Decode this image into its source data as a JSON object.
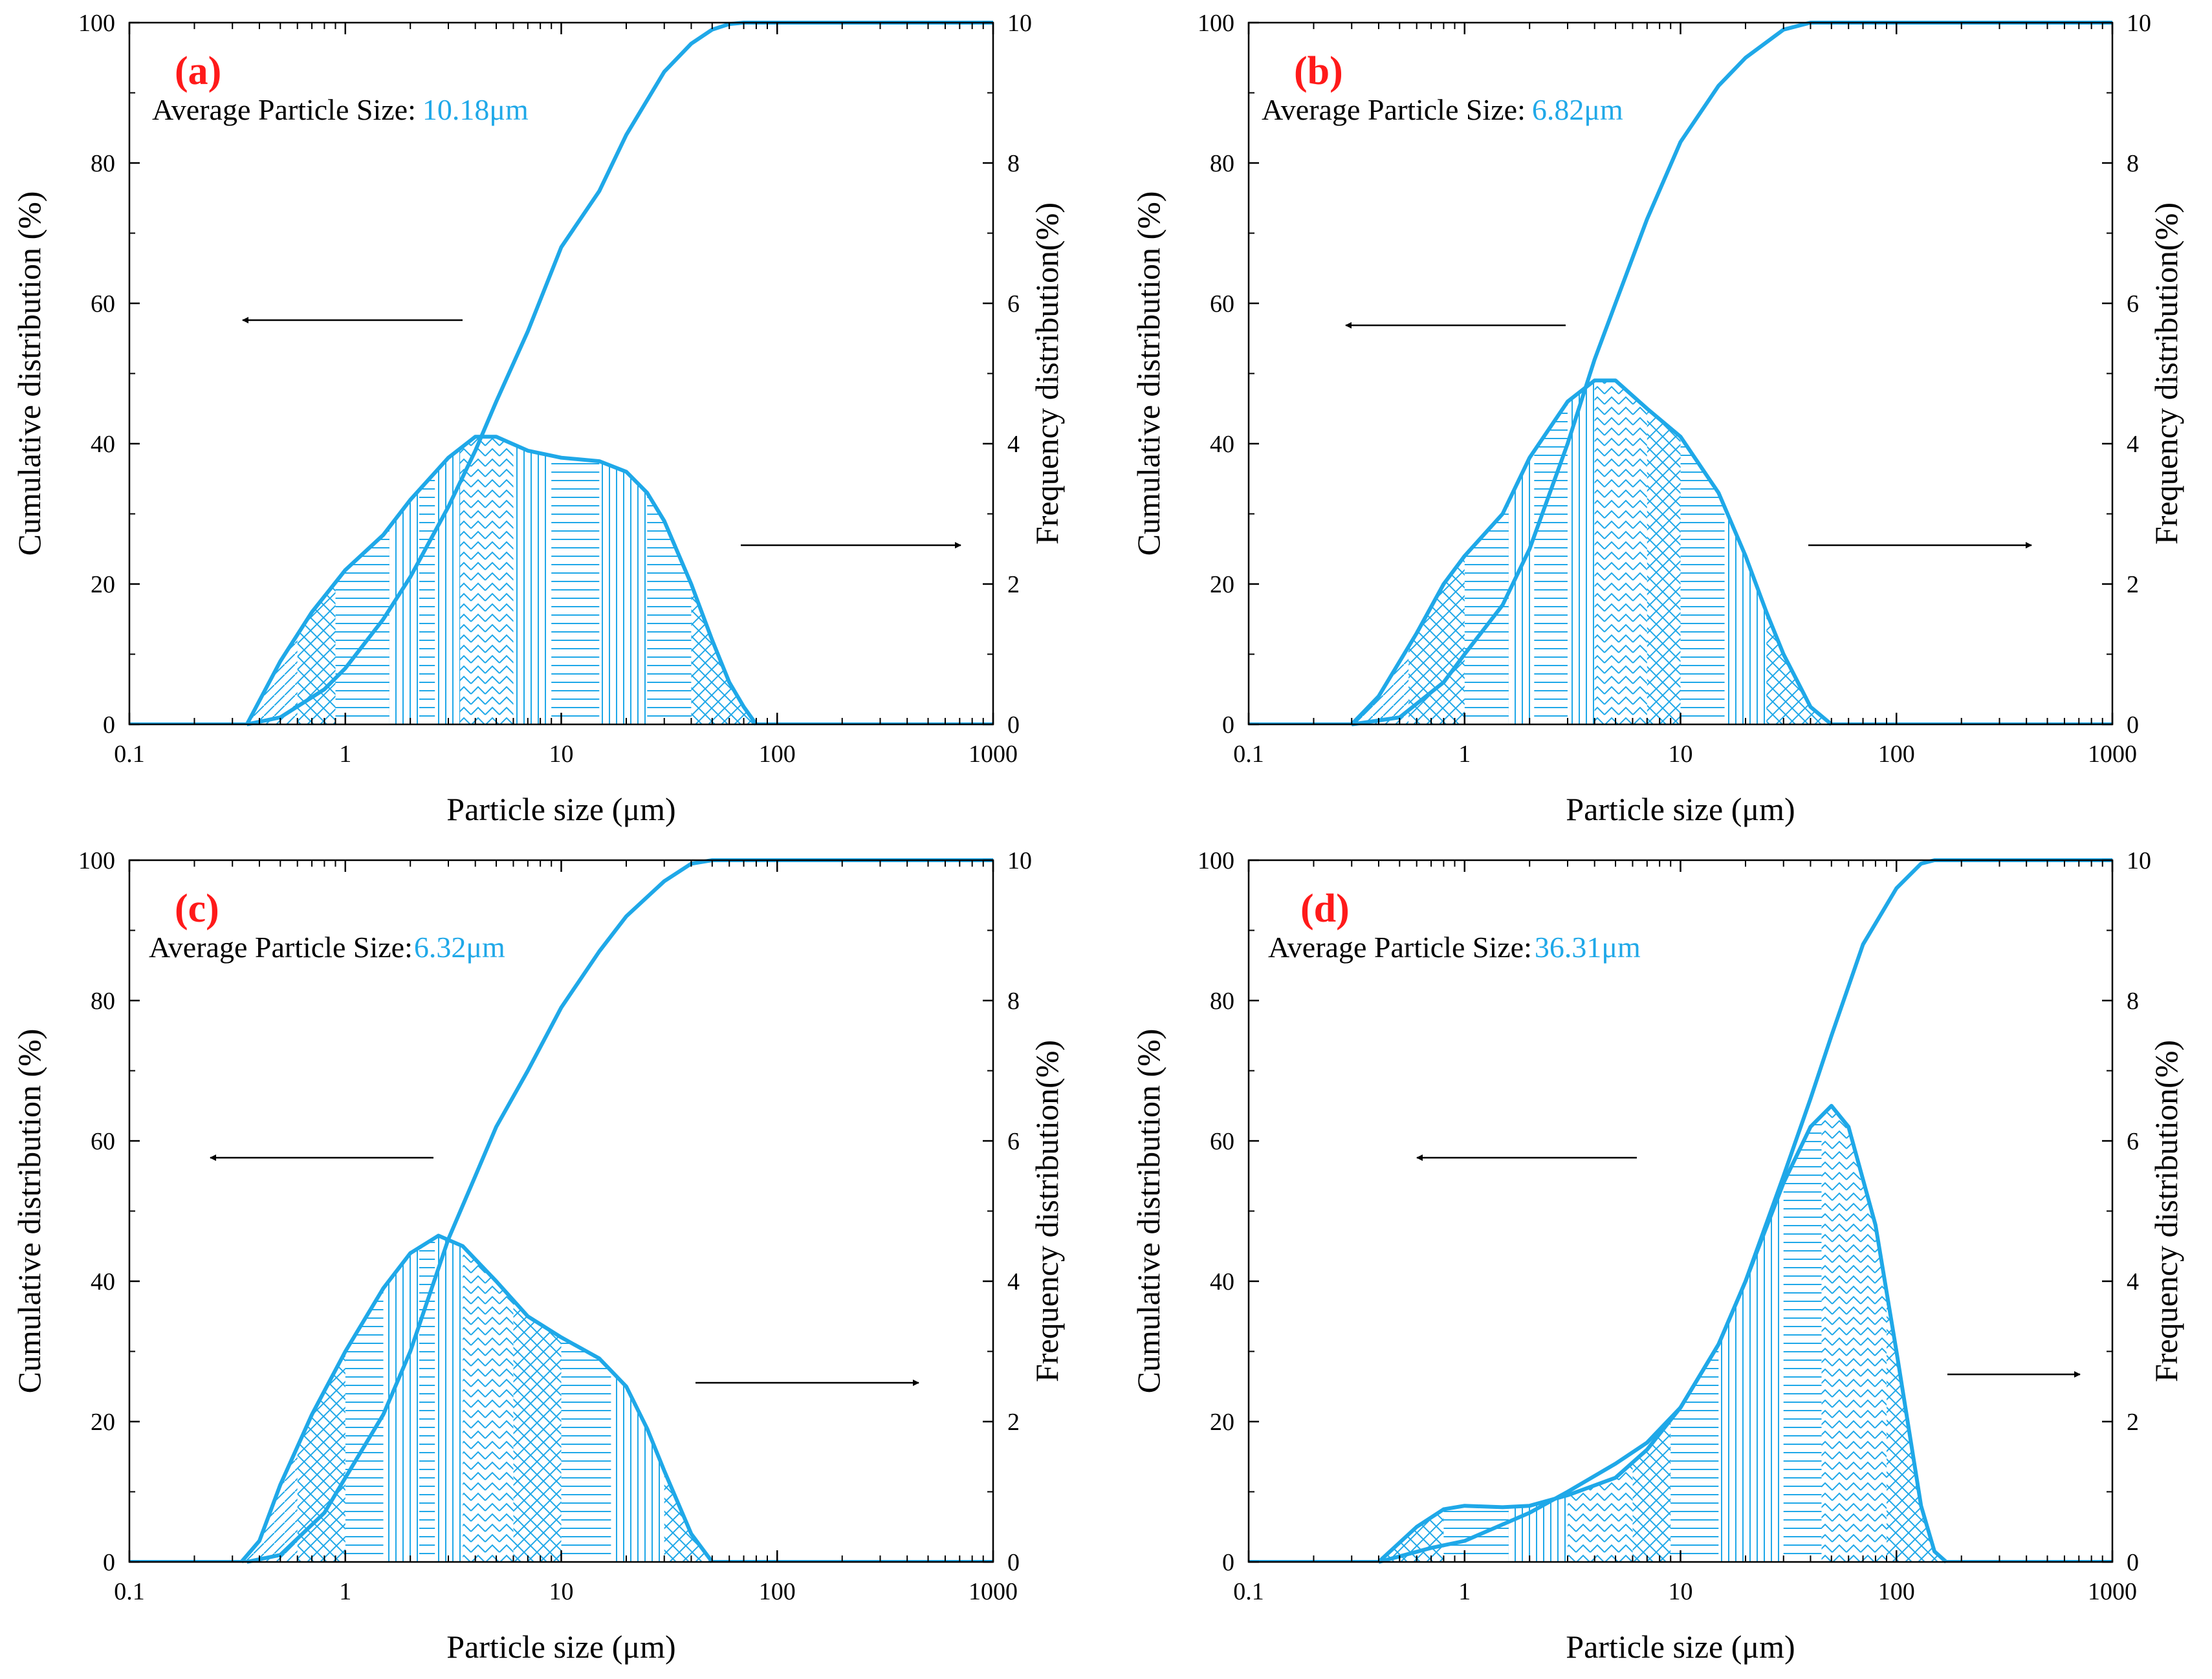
{
  "colors": {
    "curve": "#1fa8e8",
    "panel_label": "#ff1a1a",
    "avg_value": "#1fa8e8",
    "text": "#000000"
  },
  "common": {
    "xlabel": "Particle size (μm)",
    "ylabel_left": "Cumulative distribution (%)",
    "ylabel_right": "Frequency distribution(%)",
    "avg_prefix": "Average Particle Size:",
    "x_ticks": [
      "0.1",
      "1",
      "10",
      "100",
      "1000"
    ],
    "y_left_ticks": [
      "0",
      "20",
      "40",
      "60",
      "80",
      "100"
    ],
    "y_right_ticks": [
      "0",
      "2",
      "4",
      "6",
      "8",
      "10"
    ]
  },
  "chart_data": [
    {
      "type": "area",
      "panel_label": "(a)",
      "average_value": "10.18μm",
      "xlabel": "Particle size (μm)",
      "ylabel": "Cumulative distribution (%)",
      "ylabel_right": "Frequency distribution(%)",
      "xscale": "log",
      "xlim": [
        0.1,
        1000
      ],
      "ylim": [
        0,
        100
      ],
      "ylim_right": [
        0,
        10
      ],
      "series": [
        {
          "name": "Cumulative distribution",
          "axis": "left",
          "x": [
            0.35,
            0.5,
            0.8,
            1,
            1.5,
            2,
            3,
            4,
            5,
            7,
            10,
            15,
            20,
            30,
            40,
            50,
            60,
            70,
            80,
            1000
          ],
          "values": [
            0,
            1,
            5,
            8,
            15,
            21,
            31,
            39,
            46,
            56,
            68,
            76,
            84,
            93,
            97,
            99,
            99.8,
            100,
            100,
            100
          ]
        },
        {
          "name": "Frequency distribution",
          "axis": "right",
          "x": [
            0.35,
            0.5,
            0.7,
            1,
            1.5,
            2,
            3,
            4,
            5,
            7,
            10,
            15,
            20,
            25,
            30,
            40,
            50,
            60,
            70,
            80
          ],
          "values": [
            0,
            0.9,
            1.6,
            2.2,
            2.7,
            3.2,
            3.8,
            4.1,
            4.1,
            3.9,
            3.8,
            3.75,
            3.6,
            3.3,
            2.9,
            2.0,
            1.2,
            0.6,
            0.25,
            0
          ]
        }
      ]
    },
    {
      "type": "area",
      "panel_label": "(b)",
      "average_value": "6.82μm",
      "xlabel": "Particle size (μm)",
      "ylabel": "Cumulative distribution (%)",
      "ylabel_right": "Frequency distribution(%)",
      "xscale": "log",
      "xlim": [
        0.1,
        1000
      ],
      "ylim": [
        0,
        100
      ],
      "ylim_right": [
        0,
        10
      ],
      "series": [
        {
          "name": "Cumulative distribution",
          "axis": "left",
          "x": [
            0.3,
            0.5,
            0.8,
            1,
            1.5,
            2,
            3,
            4,
            5,
            7,
            10,
            15,
            20,
            30,
            40,
            50,
            1000
          ],
          "values": [
            0,
            1,
            6,
            10,
            17,
            25,
            40,
            52,
            60,
            72,
            83,
            91,
            95,
            99,
            100,
            100,
            100
          ]
        },
        {
          "name": "Frequency distribution",
          "axis": "right",
          "x": [
            0.3,
            0.4,
            0.6,
            0.8,
            1,
            1.5,
            2,
            3,
            4,
            5,
            7,
            10,
            15,
            20,
            25,
            30,
            40,
            50
          ],
          "values": [
            0,
            0.4,
            1.3,
            2.0,
            2.4,
            3.0,
            3.8,
            4.6,
            4.9,
            4.9,
            4.5,
            4.1,
            3.3,
            2.4,
            1.6,
            1.0,
            0.25,
            0
          ]
        }
      ]
    },
    {
      "type": "area",
      "panel_label": "(c)",
      "average_value": "6.32μm",
      "xlabel": "Particle size (μm)",
      "ylabel": "Cumulative distribution (%)",
      "ylabel_right": "Frequency distribution(%)",
      "xscale": "log",
      "xlim": [
        0.1,
        1000
      ],
      "ylim": [
        0,
        100
      ],
      "ylim_right": [
        0,
        10
      ],
      "series": [
        {
          "name": "Cumulative distribution",
          "axis": "left",
          "x": [
            0.35,
            0.5,
            0.8,
            1,
            1.5,
            2,
            3,
            4,
            5,
            7,
            10,
            15,
            20,
            30,
            40,
            50,
            1000
          ],
          "values": [
            0,
            1,
            7,
            12,
            21,
            30,
            46,
            55,
            62,
            70,
            79,
            87,
            92,
            97,
            99.5,
            100,
            100
          ]
        },
        {
          "name": "Frequency distribution",
          "axis": "right",
          "x": [
            0.33,
            0.4,
            0.5,
            0.7,
            1,
            1.5,
            2,
            2.7,
            3.5,
            5,
            7,
            10,
            15,
            20,
            25,
            30,
            40,
            50
          ],
          "values": [
            0,
            0.3,
            1.1,
            2.1,
            3.0,
            3.9,
            4.4,
            4.65,
            4.5,
            4.0,
            3.5,
            3.2,
            2.9,
            2.5,
            1.9,
            1.3,
            0.4,
            0
          ]
        }
      ]
    },
    {
      "type": "area",
      "panel_label": "(d)",
      "average_value": "36.31μm",
      "xlabel": "Particle size (μm)",
      "ylabel": "Cumulative distribution (%)",
      "ylabel_right": "Frequency distribution(%)",
      "xscale": "log",
      "xlim": [
        0.1,
        1000
      ],
      "ylim": [
        0,
        100
      ],
      "ylim_right": [
        0,
        10
      ],
      "series": [
        {
          "name": "Cumulative distribution",
          "axis": "left",
          "x": [
            0.4,
            0.7,
            1,
            2,
            3,
            5,
            7,
            10,
            15,
            20,
            30,
            40,
            50,
            70,
            100,
            130,
            150,
            1000
          ],
          "values": [
            0,
            2,
            3,
            7,
            10,
            14,
            17,
            22,
            31,
            40,
            55,
            66,
            75,
            88,
            96,
            99.5,
            100,
            100
          ]
        },
        {
          "name": "Frequency distribution",
          "axis": "right",
          "x": [
            0.4,
            0.6,
            0.8,
            1,
            1.5,
            2,
            3,
            5,
            7,
            10,
            15,
            20,
            30,
            40,
            50,
            60,
            80,
            100,
            130,
            150,
            170
          ],
          "values": [
            0,
            0.5,
            0.75,
            0.8,
            0.78,
            0.8,
            0.95,
            1.2,
            1.6,
            2.2,
            3.1,
            4.0,
            5.4,
            6.2,
            6.5,
            6.2,
            4.8,
            3.0,
            0.8,
            0.15,
            0
          ]
        }
      ]
    }
  ]
}
